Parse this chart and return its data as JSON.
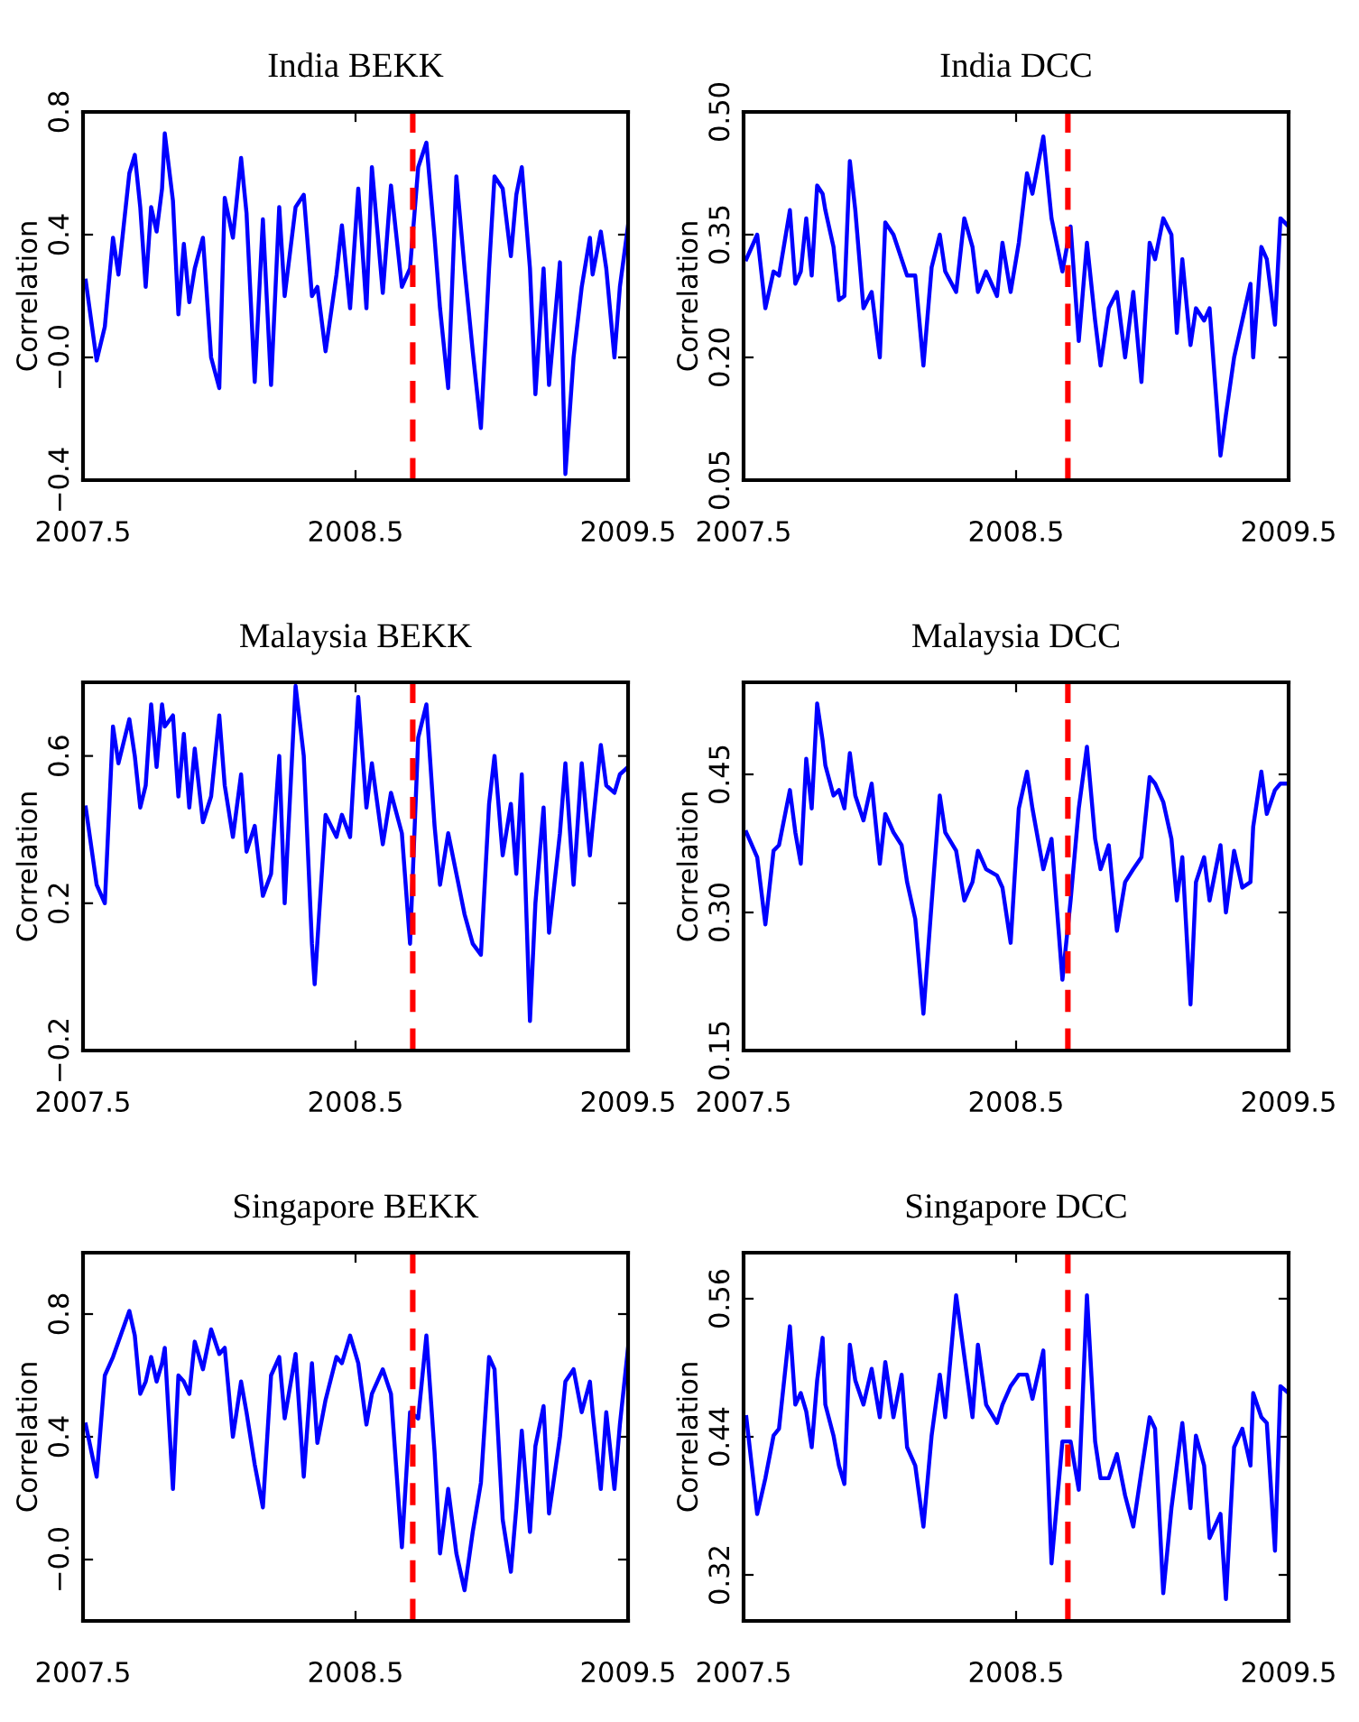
{
  "chart_data": [
    {
      "type": "line",
      "title": "India BEKK",
      "ylabel": "Correlation",
      "xlim": [
        2007.5,
        2009.5
      ],
      "xticks": [
        2007.5,
        2008.5,
        2009.5
      ],
      "ylim": [
        -0.4,
        0.8
      ],
      "yticks": [
        {
          "value": -0.4,
          "label": "−0.4"
        },
        {
          "value": 0,
          "label": "−0.0"
        },
        {
          "value": 0.4,
          "label": "0.4"
        },
        {
          "value": 0.8,
          "label": "0.8"
        }
      ],
      "grid": false,
      "marker": "none",
      "line_style": "solid",
      "ref_lines": [
        {
          "axis": "x",
          "value": 2008.71,
          "color": "#ff0000",
          "line_style": "dashed"
        }
      ],
      "x": [
        2007.51,
        2007.55,
        2007.58,
        2007.61,
        2007.63,
        2007.67,
        2007.69,
        2007.71,
        2007.73,
        2007.75,
        2007.77,
        2007.79,
        2007.8,
        2007.83,
        2007.85,
        2007.87,
        2007.89,
        2007.91,
        2007.94,
        2007.97,
        2008.0,
        2008.02,
        2008.05,
        2008.08,
        2008.1,
        2008.13,
        2008.16,
        2008.19,
        2008.22,
        2008.24,
        2008.28,
        2008.31,
        2008.34,
        2008.36,
        2008.39,
        2008.43,
        2008.45,
        2008.48,
        2008.51,
        2008.54,
        2008.56,
        2008.6,
        2008.63,
        2008.67,
        2008.7,
        2008.73,
        2008.76,
        2008.79,
        2008.81,
        2008.84,
        2008.87,
        2008.9,
        2008.93,
        2008.96,
        2008.99,
        2009.01,
        2009.04,
        2009.07,
        2009.09,
        2009.11,
        2009.14,
        2009.16,
        2009.19,
        2009.21,
        2009.25,
        2009.27,
        2009.3,
        2009.33,
        2009.36,
        2009.37,
        2009.4,
        2009.42,
        2009.45,
        2009.47,
        2009.5
      ],
      "series": [
        {
          "color": "#0000ff",
          "values": [
            0.25,
            -0.01,
            0.1,
            0.39,
            0.27,
            0.6,
            0.66,
            0.49,
            0.23,
            0.49,
            0.41,
            0.55,
            0.73,
            0.51,
            0.14,
            0.37,
            0.18,
            0.29,
            0.39,
            0.0,
            -0.1,
            0.52,
            0.39,
            0.65,
            0.47,
            -0.08,
            0.45,
            -0.09,
            0.49,
            0.2,
            0.49,
            0.53,
            0.2,
            0.23,
            0.02,
            0.27,
            0.43,
            0.16,
            0.55,
            0.16,
            0.62,
            0.21,
            0.56,
            0.23,
            0.29,
            0.62,
            0.7,
            0.39,
            0.16,
            -0.1,
            0.59,
            0.29,
            0.02,
            -0.23,
            0.29,
            0.59,
            0.55,
            0.33,
            0.53,
            0.62,
            0.29,
            -0.12,
            0.29,
            -0.09,
            0.31,
            -0.38,
            0.0,
            0.23,
            0.39,
            0.27,
            0.41,
            0.29,
            0.0,
            0.23,
            0.43
          ]
        }
      ]
    },
    {
      "type": "line",
      "title": "India DCC",
      "ylabel": "Correlation",
      "xlim": [
        2007.5,
        2009.5
      ],
      "xticks": [
        2007.5,
        2008.5,
        2009.5
      ],
      "ylim": [
        0.05,
        0.5
      ],
      "yticks": [
        {
          "value": 0.05,
          "label": "0.05"
        },
        {
          "value": 0.2,
          "label": "0.20"
        },
        {
          "value": 0.35,
          "label": "0.35"
        },
        {
          "value": 0.5,
          "label": "0.50"
        }
      ],
      "grid": false,
      "marker": "none",
      "line_style": "solid",
      "ref_lines": [
        {
          "axis": "x",
          "value": 2008.69,
          "color": "#ff0000",
          "line_style": "dashed"
        }
      ],
      "x": [
        2007.51,
        2007.55,
        2007.58,
        2007.61,
        2007.63,
        2007.67,
        2007.69,
        2007.71,
        2007.73,
        2007.75,
        2007.77,
        2007.79,
        2007.8,
        2007.83,
        2007.85,
        2007.87,
        2007.89,
        2007.91,
        2007.94,
        2007.97,
        2008.0,
        2008.02,
        2008.05,
        2008.08,
        2008.1,
        2008.13,
        2008.16,
        2008.19,
        2008.22,
        2008.24,
        2008.28,
        2008.31,
        2008.34,
        2008.36,
        2008.39,
        2008.43,
        2008.45,
        2008.48,
        2008.51,
        2008.54,
        2008.56,
        2008.6,
        2008.63,
        2008.67,
        2008.7,
        2008.73,
        2008.76,
        2008.79,
        2008.81,
        2008.84,
        2008.87,
        2008.9,
        2008.93,
        2008.96,
        2008.99,
        2009.01,
        2009.04,
        2009.07,
        2009.09,
        2009.11,
        2009.14,
        2009.16,
        2009.19,
        2009.21,
        2009.25,
        2009.27,
        2009.3,
        2009.33,
        2009.36,
        2009.37,
        2009.4,
        2009.42,
        2009.45,
        2009.47,
        2009.5
      ],
      "series": [
        {
          "color": "#0000ff",
          "values": [
            0.32,
            0.35,
            0.26,
            0.305,
            0.3,
            0.38,
            0.29,
            0.305,
            0.37,
            0.3,
            0.41,
            0.4,
            0.38,
            0.335,
            0.27,
            0.275,
            0.44,
            0.38,
            0.26,
            0.28,
            0.2,
            0.365,
            0.35,
            0.32,
            0.3,
            0.3,
            0.19,
            0.31,
            0.35,
            0.305,
            0.28,
            0.37,
            0.335,
            0.28,
            0.305,
            0.275,
            0.34,
            0.28,
            0.34,
            0.425,
            0.4,
            0.47,
            0.37,
            0.305,
            0.36,
            0.22,
            0.34,
            0.245,
            0.19,
            0.26,
            0.28,
            0.2,
            0.28,
            0.17,
            0.34,
            0.32,
            0.37,
            0.35,
            0.23,
            0.32,
            0.215,
            0.26,
            0.245,
            0.26,
            0.08,
            0.13,
            0.2,
            0.245,
            0.29,
            0.2,
            0.335,
            0.32,
            0.24,
            0.37,
            0.36
          ]
        }
      ]
    },
    {
      "type": "line",
      "title": "Malaysia BEKK",
      "ylabel": "Correlation",
      "xlim": [
        2007.5,
        2009.5
      ],
      "xticks": [
        2007.5,
        2008.5,
        2009.5
      ],
      "ylim": [
        -0.2,
        0.8
      ],
      "yticks": [
        {
          "value": -0.2,
          "label": "−0.2"
        },
        {
          "value": 0.2,
          "label": "0.2"
        },
        {
          "value": 0.6,
          "label": "0.6"
        }
      ],
      "grid": false,
      "marker": "none",
      "line_style": "solid",
      "ref_lines": [
        {
          "axis": "x",
          "value": 2008.71,
          "color": "#ff0000",
          "line_style": "dashed"
        }
      ],
      "x": [
        2007.51,
        2007.55,
        2007.58,
        2007.61,
        2007.63,
        2007.67,
        2007.69,
        2007.71,
        2007.73,
        2007.75,
        2007.77,
        2007.79,
        2007.8,
        2007.83,
        2007.85,
        2007.87,
        2007.89,
        2007.91,
        2007.94,
        2007.97,
        2008.0,
        2008.02,
        2008.05,
        2008.08,
        2008.1,
        2008.13,
        2008.16,
        2008.19,
        2008.22,
        2008.24,
        2008.28,
        2008.31,
        2008.34,
        2008.35,
        2008.39,
        2008.43,
        2008.45,
        2008.48,
        2008.51,
        2008.54,
        2008.56,
        2008.6,
        2008.63,
        2008.67,
        2008.7,
        2008.73,
        2008.76,
        2008.79,
        2008.81,
        2008.84,
        2008.87,
        2008.9,
        2008.93,
        2008.96,
        2008.99,
        2009.01,
        2009.04,
        2009.07,
        2009.09,
        2009.11,
        2009.14,
        2009.16,
        2009.19,
        2009.21,
        2009.25,
        2009.27,
        2009.3,
        2009.33,
        2009.36,
        2009.37,
        2009.4,
        2009.42,
        2009.45,
        2009.47,
        2009.5
      ],
      "series": [
        {
          "color": "#0000ff",
          "values": [
            0.46,
            0.25,
            0.2,
            0.68,
            0.58,
            0.7,
            0.6,
            0.46,
            0.52,
            0.74,
            0.57,
            0.74,
            0.68,
            0.71,
            0.49,
            0.66,
            0.46,
            0.62,
            0.42,
            0.49,
            0.71,
            0.52,
            0.38,
            0.55,
            0.34,
            0.41,
            0.22,
            0.28,
            0.6,
            0.2,
            0.79,
            0.6,
            0.09,
            -0.02,
            0.44,
            0.38,
            0.44,
            0.38,
            0.76,
            0.46,
            0.58,
            0.36,
            0.5,
            0.39,
            0.09,
            0.65,
            0.74,
            0.41,
            0.25,
            0.39,
            0.28,
            0.17,
            0.09,
            0.06,
            0.47,
            0.6,
            0.33,
            0.47,
            0.28,
            0.55,
            -0.12,
            0.2,
            0.46,
            0.12,
            0.39,
            0.58,
            0.25,
            0.58,
            0.33,
            0.41,
            0.63,
            0.52,
            0.5,
            0.55,
            0.57
          ]
        }
      ]
    },
    {
      "type": "line",
      "title": "Malaysia DCC",
      "ylabel": "Correlation",
      "xlim": [
        2007.5,
        2009.5
      ],
      "xticks": [
        2007.5,
        2008.5,
        2009.5
      ],
      "ylim": [
        0.15,
        0.55
      ],
      "yticks": [
        {
          "value": 0.15,
          "label": "0.15"
        },
        {
          "value": 0.3,
          "label": "0.30"
        },
        {
          "value": 0.45,
          "label": "0.45"
        }
      ],
      "grid": false,
      "marker": "none",
      "line_style": "solid",
      "ref_lines": [
        {
          "axis": "x",
          "value": 2008.69,
          "color": "#ff0000",
          "line_style": "dashed"
        }
      ],
      "x": [
        2007.51,
        2007.55,
        2007.58,
        2007.61,
        2007.63,
        2007.67,
        2007.69,
        2007.71,
        2007.73,
        2007.75,
        2007.77,
        2007.79,
        2007.8,
        2007.83,
        2007.85,
        2007.87,
        2007.89,
        2007.91,
        2007.94,
        2007.97,
        2008.0,
        2008.02,
        2008.05,
        2008.08,
        2008.1,
        2008.13,
        2008.16,
        2008.19,
        2008.22,
        2008.24,
        2008.28,
        2008.31,
        2008.34,
        2008.36,
        2008.39,
        2008.43,
        2008.45,
        2008.48,
        2008.51,
        2008.54,
        2008.56,
        2008.6,
        2008.63,
        2008.67,
        2008.7,
        2008.73,
        2008.76,
        2008.79,
        2008.81,
        2008.84,
        2008.87,
        2008.9,
        2008.93,
        2008.96,
        2008.99,
        2009.01,
        2009.04,
        2009.07,
        2009.09,
        2009.11,
        2009.14,
        2009.16,
        2009.19,
        2009.21,
        2009.25,
        2009.27,
        2009.3,
        2009.33,
        2009.36,
        2009.37,
        2009.4,
        2009.42,
        2009.45,
        2009.47,
        2009.5
      ],
      "series": [
        {
          "color": "#0000ff",
          "values": [
            0.387,
            0.36,
            0.287,
            0.367,
            0.373,
            0.433,
            0.387,
            0.353,
            0.467,
            0.413,
            0.527,
            0.487,
            0.46,
            0.427,
            0.433,
            0.413,
            0.473,
            0.427,
            0.4,
            0.44,
            0.353,
            0.407,
            0.387,
            0.373,
            0.333,
            0.293,
            0.19,
            0.31,
            0.427,
            0.387,
            0.367,
            0.313,
            0.333,
            0.367,
            0.347,
            0.34,
            0.327,
            0.267,
            0.413,
            0.453,
            0.413,
            0.347,
            0.38,
            0.227,
            0.313,
            0.413,
            0.48,
            0.38,
            0.347,
            0.373,
            0.28,
            0.333,
            0.347,
            0.36,
            0.447,
            0.44,
            0.42,
            0.38,
            0.313,
            0.36,
            0.2,
            0.333,
            0.36,
            0.313,
            0.373,
            0.3,
            0.367,
            0.327,
            0.333,
            0.393,
            0.453,
            0.407,
            0.433,
            0.44,
            0.44
          ]
        }
      ]
    },
    {
      "type": "line",
      "title": "Singapore BEKK",
      "ylabel": "Correlation",
      "xlim": [
        2007.5,
        2009.5
      ],
      "xticks": [
        2007.5,
        2008.5,
        2009.5
      ],
      "ylim": [
        -0.2,
        1.0
      ],
      "yticks": [
        {
          "value": 0,
          "label": "−0.0"
        },
        {
          "value": 0.4,
          "label": "0.4"
        },
        {
          "value": 0.8,
          "label": "0.8"
        }
      ],
      "grid": false,
      "marker": "none",
      "line_style": "solid",
      "ref_lines": [
        {
          "axis": "x",
          "value": 2008.71,
          "color": "#ff0000",
          "line_style": "dashed"
        }
      ],
      "x": [
        2007.51,
        2007.55,
        2007.58,
        2007.61,
        2007.63,
        2007.67,
        2007.69,
        2007.71,
        2007.73,
        2007.75,
        2007.77,
        2007.79,
        2007.8,
        2007.83,
        2007.85,
        2007.87,
        2007.89,
        2007.91,
        2007.94,
        2007.97,
        2008.0,
        2008.02,
        2008.05,
        2008.08,
        2008.1,
        2008.13,
        2008.16,
        2008.19,
        2008.22,
        2008.24,
        2008.28,
        2008.31,
        2008.34,
        2008.36,
        2008.39,
        2008.43,
        2008.45,
        2008.48,
        2008.51,
        2008.54,
        2008.56,
        2008.6,
        2008.63,
        2008.67,
        2008.7,
        2008.73,
        2008.76,
        2008.79,
        2008.81,
        2008.84,
        2008.87,
        2008.9,
        2008.93,
        2008.96,
        2008.99,
        2009.01,
        2009.04,
        2009.07,
        2009.09,
        2009.11,
        2009.14,
        2009.16,
        2009.19,
        2009.21,
        2009.25,
        2009.27,
        2009.3,
        2009.33,
        2009.36,
        2009.37,
        2009.4,
        2009.42,
        2009.45,
        2009.47,
        2009.5
      ],
      "series": [
        {
          "color": "#0000ff",
          "values": [
            0.44,
            0.27,
            0.6,
            0.66,
            0.71,
            0.81,
            0.73,
            0.54,
            0.58,
            0.66,
            0.58,
            0.64,
            0.69,
            0.23,
            0.6,
            0.58,
            0.54,
            0.71,
            0.62,
            0.75,
            0.67,
            0.69,
            0.4,
            0.58,
            0.48,
            0.31,
            0.17,
            0.6,
            0.66,
            0.46,
            0.67,
            0.27,
            0.64,
            0.38,
            0.52,
            0.66,
            0.64,
            0.73,
            0.64,
            0.44,
            0.54,
            0.62,
            0.54,
            0.04,
            0.48,
            0.46,
            0.73,
            0.35,
            0.02,
            0.23,
            0.02,
            -0.1,
            0.09,
            0.25,
            0.66,
            0.62,
            0.13,
            -0.04,
            0.17,
            0.42,
            0.09,
            0.37,
            0.5,
            0.15,
            0.4,
            0.58,
            0.62,
            0.48,
            0.58,
            0.48,
            0.23,
            0.48,
            0.23,
            0.44,
            0.69
          ]
        }
      ]
    },
    {
      "type": "line",
      "title": "Singapore DCC",
      "ylabel": "Correlation",
      "xlim": [
        2007.5,
        2009.5
      ],
      "xticks": [
        2007.5,
        2008.5,
        2009.5
      ],
      "ylim": [
        0.28,
        0.6
      ],
      "yticks": [
        {
          "value": 0.32,
          "label": "0.32"
        },
        {
          "value": 0.44,
          "label": "0.44"
        },
        {
          "value": 0.56,
          "label": "0.56"
        }
      ],
      "grid": false,
      "marker": "none",
      "line_style": "solid",
      "ref_lines": [
        {
          "axis": "x",
          "value": 2008.69,
          "color": "#ff0000",
          "line_style": "dashed"
        }
      ],
      "x": [
        2007.51,
        2007.55,
        2007.58,
        2007.61,
        2007.63,
        2007.67,
        2007.69,
        2007.71,
        2007.73,
        2007.75,
        2007.77,
        2007.79,
        2007.8,
        2007.83,
        2007.85,
        2007.87,
        2007.89,
        2007.91,
        2007.94,
        2007.97,
        2008.0,
        2008.02,
        2008.05,
        2008.08,
        2008.1,
        2008.13,
        2008.16,
        2008.19,
        2008.22,
        2008.24,
        2008.28,
        2008.31,
        2008.34,
        2008.36,
        2008.39,
        2008.43,
        2008.45,
        2008.48,
        2008.51,
        2008.54,
        2008.56,
        2008.6,
        2008.63,
        2008.67,
        2008.7,
        2008.73,
        2008.76,
        2008.79,
        2008.81,
        2008.84,
        2008.87,
        2008.9,
        2008.93,
        2008.96,
        2008.99,
        2009.01,
        2009.04,
        2009.07,
        2009.09,
        2009.11,
        2009.14,
        2009.16,
        2009.19,
        2009.21,
        2009.25,
        2009.27,
        2009.3,
        2009.33,
        2009.36,
        2009.37,
        2009.4,
        2009.42,
        2009.45,
        2009.47,
        2009.5
      ],
      "series": [
        {
          "color": "#0000ff",
          "values": [
            0.457,
            0.373,
            0.404,
            0.441,
            0.447,
            0.536,
            0.468,
            0.478,
            0.462,
            0.431,
            0.489,
            0.526,
            0.468,
            0.441,
            0.415,
            0.399,
            0.52,
            0.489,
            0.468,
            0.499,
            0.457,
            0.505,
            0.457,
            0.494,
            0.431,
            0.415,
            0.362,
            0.441,
            0.494,
            0.457,
            0.563,
            0.51,
            0.457,
            0.52,
            0.468,
            0.452,
            0.468,
            0.484,
            0.494,
            0.494,
            0.473,
            0.515,
            0.33,
            0.436,
            0.436,
            0.394,
            0.563,
            0.436,
            0.404,
            0.404,
            0.425,
            0.389,
            0.362,
            0.41,
            0.457,
            0.447,
            0.304,
            0.378,
            0.415,
            0.452,
            0.378,
            0.441,
            0.415,
            0.352,
            0.373,
            0.299,
            0.431,
            0.447,
            0.415,
            0.478,
            0.457,
            0.452,
            0.341,
            0.484,
            0.478
          ]
        }
      ]
    }
  ]
}
